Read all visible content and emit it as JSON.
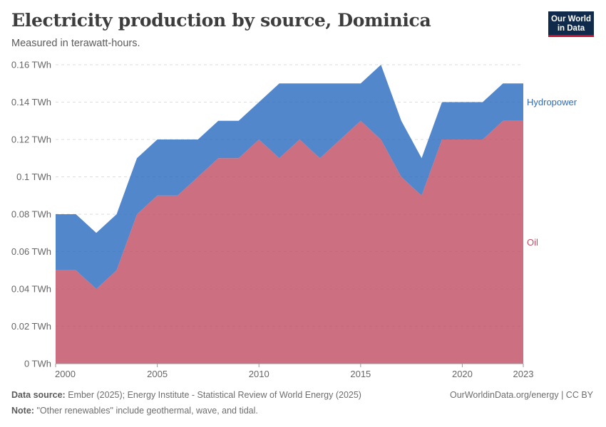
{
  "header": {
    "title": "Electricity production by source, Dominica",
    "subtitle": "Measured in terawatt-hours."
  },
  "logo": {
    "line1": "Our World",
    "line2": "in Data"
  },
  "footer": {
    "source_label": "Data source:",
    "source_text": "Ember (2025); Energy Institute - Statistical Review of World Energy (2025)",
    "note_label": "Note:",
    "note_text": "\"Other renewables\" include geothermal, wave, and tidal.",
    "license": "OurWorldinData.org/energy | CC BY"
  },
  "chart_data": {
    "type": "area",
    "stacked": true,
    "title": "Electricity production by source, Dominica",
    "ylabel": "Measured in terawatt-hours.",
    "ylim": [
      0,
      0.16
    ],
    "xlim": [
      2000,
      2023
    ],
    "x": [
      2000,
      2001,
      2002,
      2003,
      2004,
      2005,
      2006,
      2007,
      2008,
      2009,
      2010,
      2011,
      2012,
      2013,
      2014,
      2015,
      2016,
      2017,
      2018,
      2019,
      2020,
      2021,
      2022,
      2023
    ],
    "x_ticks": [
      {
        "value": 2000,
        "label": "2000"
      },
      {
        "value": 2005,
        "label": "2005"
      },
      {
        "value": 2010,
        "label": "2010"
      },
      {
        "value": 2015,
        "label": "2015"
      },
      {
        "value": 2020,
        "label": "2020"
      },
      {
        "value": 2023,
        "label": "2023"
      }
    ],
    "y_ticks": [
      {
        "value": 0,
        "label": "0 TWh"
      },
      {
        "value": 0.02,
        "label": "0.02 TWh"
      },
      {
        "value": 0.04,
        "label": "0.04 TWh"
      },
      {
        "value": 0.06,
        "label": "0.06 TWh"
      },
      {
        "value": 0.08,
        "label": "0.08 TWh"
      },
      {
        "value": 0.1,
        "label": "0.1 TWh"
      },
      {
        "value": 0.12,
        "label": "0.12 TWh"
      },
      {
        "value": 0.14,
        "label": "0.14 TWh"
      },
      {
        "value": 0.16,
        "label": "0.16 TWh"
      }
    ],
    "grid": true,
    "series": [
      {
        "name": "Oil",
        "color": "#c15065",
        "values": [
          0.05,
          0.05,
          0.04,
          0.05,
          0.08,
          0.09,
          0.09,
          0.1,
          0.11,
          0.11,
          0.12,
          0.11,
          0.12,
          0.11,
          0.12,
          0.13,
          0.12,
          0.1,
          0.09,
          0.12,
          0.12,
          0.12,
          0.13,
          0.13
        ]
      },
      {
        "name": "Hydropower",
        "color": "#2c6cbf",
        "values": [
          0.03,
          0.03,
          0.03,
          0.03,
          0.03,
          0.03,
          0.03,
          0.02,
          0.02,
          0.02,
          0.02,
          0.04,
          0.03,
          0.04,
          0.03,
          0.02,
          0.04,
          0.03,
          0.02,
          0.02,
          0.02,
          0.02,
          0.02,
          0.02
        ]
      }
    ]
  }
}
